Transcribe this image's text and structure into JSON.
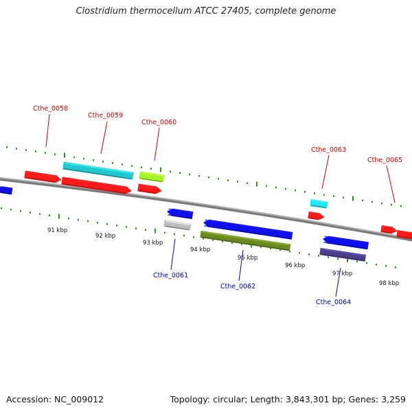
{
  "title": "Clostridium thermocellum ATCC 27405, complete genome",
  "footer": {
    "accession": "Accession: NC_009012",
    "summary": "Topology: circular; Length: 3,843,301 bp; Genes: 3,259"
  },
  "colors": {
    "backbone": "#8a8a8a",
    "tick": "#2e8b1e",
    "label_top": "#cc0000",
    "label_bottom": "#0000aa"
  },
  "scale_labels": [
    "91 kbp",
    "92 kbp",
    "93 kbp",
    "94 kbp",
    "95 kbp",
    "96 kbp",
    "97 kbp",
    "98 kbp"
  ],
  "genes": [
    {
      "label": "Cthe_0058",
      "strand": "forward",
      "color": "#ff1a1a"
    },
    {
      "label": "Cthe_0059",
      "strand": "forward",
      "color": "#ff1a1a"
    },
    {
      "label": "",
      "strand": "forward",
      "color": "#22c8d0"
    },
    {
      "label": "Cthe_0060",
      "strand": "forward",
      "color": "#ff1a1a"
    },
    {
      "label": "",
      "strand": "forward",
      "color": "#a6f52a"
    },
    {
      "label": "Cthe_0061",
      "strand": "reverse",
      "color": "#1010ee"
    },
    {
      "label": "",
      "strand": "reverse",
      "color": "#bdbdbd"
    },
    {
      "label": "Cthe_0062",
      "strand": "reverse",
      "color": "#1010ee"
    },
    {
      "label": "",
      "strand": "reverse",
      "color": "#6b8a1e"
    },
    {
      "label": "Cthe_0063",
      "strand": "forward",
      "color": "#ff1a1a"
    },
    {
      "label": "",
      "strand": "forward",
      "color": "#22e6f0"
    },
    {
      "label": "Cthe_0064",
      "strand": "reverse",
      "color": "#1010ee"
    },
    {
      "label": "",
      "strand": "reverse",
      "color": "#4a3f8a"
    },
    {
      "label": "Cthe_0065",
      "strand": "forward",
      "color": "#ff1a1a"
    },
    {
      "label": "",
      "strand": "forward",
      "color": "#ff1a1a"
    },
    {
      "label": "",
      "strand": "reverse",
      "color": "#1010ee"
    }
  ]
}
